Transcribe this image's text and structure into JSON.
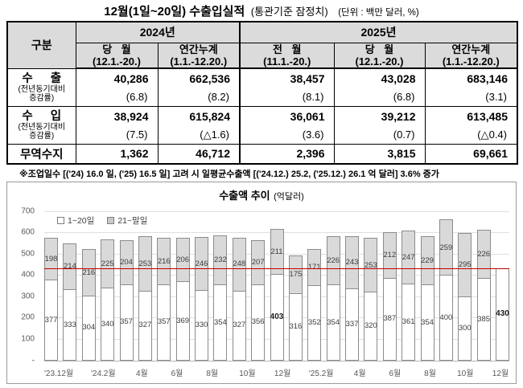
{
  "page_title": {
    "main": "12월(1일~20일) 수출입실적",
    "qualifier": "(통관기준 잠정치)",
    "unit": "(단위 : 백만 달러, %)"
  },
  "table": {
    "corner": "구분",
    "year_groups": [
      {
        "label": "2024년"
      },
      {
        "label": "2025년"
      }
    ],
    "columns": [
      {
        "line1": "당 월",
        "line2": "(12.1.-20.)"
      },
      {
        "line1": "연간누계",
        "line2": "(1.1.-12.20.)"
      },
      {
        "line1": "전 월",
        "line2": "(11.1.-20.)"
      },
      {
        "line1": "당 월",
        "line2": "(12.1.-20.)"
      },
      {
        "line1": "연간누계",
        "line2": "(1.1.-12.20.)"
      }
    ],
    "rows": [
      {
        "label": "수 출",
        "sublabel1": "(전년동기대비",
        "sublabel2": "증감률)",
        "values": [
          "40,286",
          "662,536",
          "38,457",
          "43,028",
          "683,146"
        ],
        "rates": [
          "(6.8)",
          "(8.2)",
          "(8.1)",
          "(6.8)",
          "(3.1)"
        ]
      },
      {
        "label": "수 입",
        "sublabel1": "(전년동기대비",
        "sublabel2": "증감률)",
        "values": [
          "38,924",
          "615,824",
          "36,061",
          "39,212",
          "613,485"
        ],
        "rates": [
          "(7.5)",
          "(△1.6)",
          "(3.6)",
          "(0.7)",
          "(△0.4)"
        ]
      },
      {
        "label": "무역수지",
        "values": [
          "1,362",
          "46,712",
          "2,396",
          "3,815",
          "69,661"
        ]
      }
    ]
  },
  "note": "※조업일수 [('24) 16.0 일, ('25) 16.5 일] 고려 시 일평균수출액 [('24.12.) 25.2, ('25.12.) 26.1 억 달러] 3.6% 증가",
  "chart_data": {
    "type": "bar",
    "stacked": true,
    "title": "수출액 추이",
    "title_unit": "(억달러)",
    "xlabel": "",
    "ylabel": "",
    "grid": true,
    "legend_position": "top-left",
    "legend": [
      "1~20일",
      "21~말일"
    ],
    "ylim": [
      0,
      700
    ],
    "yticks": [
      {
        "v": 700,
        "label": "700"
      },
      {
        "v": 600,
        "label": "600"
      },
      {
        "v": 500,
        "label": "500"
      },
      {
        "v": 400,
        "label": "400"
      },
      {
        "v": 300,
        "label": "300"
      },
      {
        "v": 200,
        "label": "200"
      },
      {
        "v": 100,
        "label": "100"
      },
      {
        "v": 0,
        "label": "-"
      }
    ],
    "reference_line": 430,
    "categories": [
      "'23.12월",
      "'24.1월",
      "'24.2월",
      "3월",
      "4월",
      "5월",
      "6월",
      "7월",
      "8월",
      "9월",
      "10월",
      "11월",
      "12월",
      "'25.1월",
      "'25.2월",
      "3월",
      "4월",
      "5월",
      "6월",
      "7월",
      "8월",
      "9월",
      "10월",
      "11월",
      "12월"
    ],
    "x_tick_labels": [
      "'23.12월",
      "'24.2월",
      "4월",
      "6월",
      "8월",
      "10월",
      "12월",
      "'25.2월",
      "4월",
      "6월",
      "8월",
      "10월",
      "12월"
    ],
    "series": [
      {
        "name": "1~20일",
        "values": [
          377,
          333,
          304,
          340,
          357,
          327,
          357,
          369,
          330,
          354,
          327,
          356,
          403,
          316,
          352,
          354,
          337,
          320,
          387,
          361,
          354,
          400,
          300,
          385,
          430
        ]
      },
      {
        "name": "21~말일",
        "values": [
          198,
          214,
          216,
          225,
          204,
          253,
          216,
          206,
          246,
          232,
          248,
          207,
          211,
          175,
          171,
          226,
          243,
          253,
          212,
          247,
          229,
          259,
          295,
          226,
          null
        ]
      }
    ],
    "bold_value_indices": [
      12,
      24
    ],
    "colors": {
      "seg1_fill": "#ffffff",
      "seg2_fill": "#d9d9d9",
      "bar_border": "#8c8c8c",
      "ref_line": "#c00000",
      "grid": "#e0e0e0"
    }
  }
}
